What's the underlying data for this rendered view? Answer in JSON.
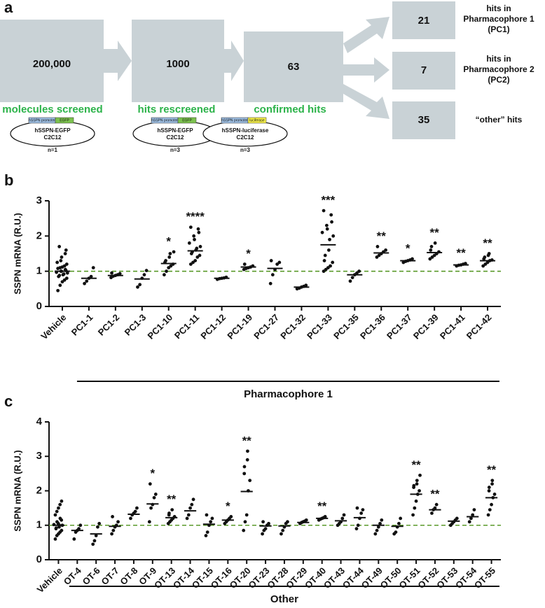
{
  "panel_a": {
    "label": "a",
    "stages": [
      {
        "value": "200,000",
        "caption": "molecules screened"
      },
      {
        "value": "1000",
        "caption": "hits rescreened"
      },
      {
        "value": "63",
        "caption": "confirmed hits"
      }
    ],
    "outcomes": [
      {
        "value": "21",
        "lines": [
          "hits in",
          "Pharmacophore 1",
          "(PC1)"
        ]
      },
      {
        "value": "7",
        "lines": [
          "hits in",
          "Pharmacophore 2",
          "(PC2)"
        ]
      },
      {
        "value": "35",
        "lines": [
          "“other” hits"
        ]
      }
    ],
    "constructs": [
      {
        "promoter": "hSSPN promoter",
        "reporter": "EGFP",
        "name": "hSSPN-EGFP",
        "cell_line": "C2C12"
      },
      {
        "promoter": "hSSPN promoter",
        "reporter": "EGFP",
        "name": "hSSPN-EGFP",
        "cell_line": "C2C12"
      },
      {
        "promoter": "hSSPN promoter",
        "reporter": "luciferase",
        "name": "hSSPN-luciferase",
        "cell_line": "C2C12"
      }
    ],
    "n_labels": [
      "n=1",
      "n=3",
      "n=3"
    ]
  },
  "chart_data": [
    {
      "type": "strip",
      "panel_label": "b",
      "ylabel": "SSPN mRNA (R.U.)",
      "group_label": "Pharmacophore 1",
      "ylim": [
        0,
        3
      ],
      "yticks": [
        0,
        1,
        2,
        3
      ],
      "reference_line": 1,
      "reference_color": "#5a9a2a",
      "color": "#111111",
      "categories": [
        "Vehicle",
        "PC1-1",
        "PC1-2",
        "PC1-3",
        "PC1-10",
        "PC1-11",
        "PC1-12",
        "PC1-19",
        "PC1-27",
        "PC1-32",
        "PC1-33",
        "PC1-35",
        "PC1-36",
        "PC1-37",
        "PC1-39",
        "PC1-41",
        "PC1-42"
      ],
      "means": [
        1.0,
        0.8,
        0.88,
        0.78,
        1.22,
        1.58,
        0.8,
        1.12,
        1.08,
        0.55,
        1.75,
        0.9,
        1.52,
        1.3,
        1.53,
        1.18,
        1.3
      ],
      "significance": [
        null,
        null,
        null,
        null,
        "*",
        "****",
        null,
        "*",
        null,
        null,
        "***",
        null,
        "**",
        "*",
        "**",
        "**",
        "**"
      ],
      "points": [
        [
          0.45,
          0.6,
          0.7,
          0.75,
          0.8,
          0.85,
          0.88,
          0.9,
          0.92,
          0.95,
          0.97,
          1.0,
          1.0,
          1.02,
          1.05,
          1.08,
          1.1,
          1.12,
          1.15,
          1.2,
          1.25,
          1.3,
          1.4,
          1.5,
          1.6,
          1.7
        ],
        [
          0.65,
          0.72,
          0.8,
          0.85,
          1.1
        ],
        [
          0.82,
          0.86,
          0.88,
          0.9,
          0.93,
          0.95
        ],
        [
          0.55,
          0.62,
          0.8,
          0.9,
          1.02
        ],
        [
          0.9,
          1.0,
          1.1,
          1.15,
          1.2,
          1.25,
          1.3,
          1.4,
          1.5,
          1.55
        ],
        [
          1.2,
          1.25,
          1.3,
          1.4,
          1.45,
          1.5,
          1.55,
          1.6,
          1.65,
          1.7,
          1.8,
          1.9,
          2.0,
          2.1,
          2.2,
          2.25
        ],
        [
          0.77,
          0.79,
          0.8,
          0.81,
          0.83
        ],
        [
          1.05,
          1.08,
          1.1,
          1.12,
          1.15,
          1.2
        ],
        [
          0.65,
          0.9,
          1.05,
          1.2,
          1.25,
          1.3
        ],
        [
          0.5,
          0.52,
          0.55,
          0.57,
          0.6
        ],
        [
          1.0,
          1.05,
          1.1,
          1.15,
          1.25,
          1.3,
          1.45,
          1.6,
          1.9,
          2.0,
          2.1,
          2.2,
          2.3,
          2.4,
          2.6,
          2.72
        ],
        [
          0.72,
          0.82,
          0.9,
          0.95,
          1.0
        ],
        [
          1.4,
          1.45,
          1.5,
          1.55,
          1.6,
          1.7
        ],
        [
          1.25,
          1.28,
          1.3,
          1.32,
          1.35
        ],
        [
          1.35,
          1.4,
          1.45,
          1.5,
          1.55,
          1.6,
          1.7,
          1.8
        ],
        [
          1.15,
          1.17,
          1.18,
          1.2,
          1.22
        ],
        [
          1.15,
          1.2,
          1.25,
          1.3,
          1.32,
          1.35,
          1.4,
          1.45,
          1.5
        ]
      ]
    },
    {
      "type": "strip",
      "panel_label": "c",
      "ylabel": "SSPN mRNA (R.U.)",
      "group_label": "Other",
      "ylim": [
        0,
        4
      ],
      "yticks": [
        0,
        1,
        2,
        3,
        4
      ],
      "reference_line": 1,
      "reference_color": "#5a9a2a",
      "color": "#111111",
      "categories": [
        "Vehicle",
        "OT-4",
        "OT-6",
        "OT-7",
        "OT-8",
        "OT-9",
        "OT-13",
        "OT-14",
        "OT-15",
        "OT-16",
        "OT-20",
        "OT-23",
        "OT-28",
        "OT-29",
        "OT-40",
        "OT-43",
        "OT-44",
        "OT-49",
        "OT-50",
        "OT-51",
        "OT-52",
        "OT-53",
        "OT-54",
        "OT-55"
      ],
      "means": [
        1.0,
        0.85,
        0.75,
        0.97,
        1.32,
        1.62,
        1.22,
        1.42,
        1.03,
        1.15,
        1.98,
        0.98,
        0.98,
        1.08,
        1.2,
        1.13,
        1.22,
        1.0,
        0.97,
        1.9,
        1.45,
        1.12,
        1.25,
        1.8
      ],
      "significance": [
        null,
        null,
        null,
        null,
        null,
        "*",
        "**",
        null,
        null,
        "*",
        "**",
        null,
        null,
        null,
        "**",
        null,
        null,
        null,
        null,
        "**",
        "**",
        null,
        null,
        "**"
      ],
      "points": [
        [
          0.6,
          0.7,
          0.75,
          0.8,
          0.85,
          0.9,
          0.92,
          0.95,
          1.0,
          1.0,
          1.02,
          1.05,
          1.1,
          1.15,
          1.2,
          1.3,
          1.4,
          1.5,
          1.6,
          1.7
        ],
        [
          0.6,
          0.8,
          0.85,
          0.9,
          1.0
        ],
        [
          0.45,
          0.55,
          0.7,
          0.95,
          1.05
        ],
        [
          0.75,
          0.85,
          0.95,
          1.0,
          1.1,
          1.25
        ],
        [
          1.2,
          1.3,
          1.35,
          1.4,
          1.5
        ],
        [
          1.1,
          1.5,
          1.6,
          1.8,
          1.9,
          2.2
        ],
        [
          1.05,
          1.1,
          1.15,
          1.2,
          1.25,
          1.3,
          1.35,
          1.45
        ],
        [
          1.2,
          1.3,
          1.5,
          1.6,
          1.75
        ],
        [
          0.7,
          0.8,
          1.0,
          1.1,
          1.2,
          1.3
        ],
        [
          1.05,
          1.1,
          1.15,
          1.2,
          1.25
        ],
        [
          0.85,
          1.1,
          1.3,
          2.0,
          2.3,
          2.5,
          2.7,
          2.9,
          3.15
        ],
        [
          0.75,
          0.85,
          0.9,
          1.0,
          1.05,
          1.1
        ],
        [
          0.75,
          0.85,
          0.95,
          1.05,
          1.1
        ],
        [
          1.05,
          1.08,
          1.1,
          1.12,
          1.15
        ],
        [
          1.15,
          1.18,
          1.2,
          1.22,
          1.25
        ],
        [
          1.0,
          1.05,
          1.1,
          1.2,
          1.3
        ],
        [
          0.9,
          1.0,
          1.2,
          1.35,
          1.45,
          1.5
        ],
        [
          0.75,
          0.85,
          0.95,
          1.05,
          1.15
        ],
        [
          0.75,
          0.8,
          0.95,
          1.05,
          1.2
        ],
        [
          1.3,
          1.5,
          1.7,
          1.9,
          2.0,
          2.1,
          2.15,
          2.2,
          2.3,
          2.45
        ],
        [
          1.35,
          1.45,
          1.5,
          1.6
        ],
        [
          1.0,
          1.05,
          1.1,
          1.15,
          1.2
        ],
        [
          1.1,
          1.2,
          1.3,
          1.45
        ],
        [
          1.3,
          1.45,
          1.6,
          1.8,
          1.9,
          2.0,
          2.1,
          2.2,
          2.3
        ]
      ]
    }
  ]
}
